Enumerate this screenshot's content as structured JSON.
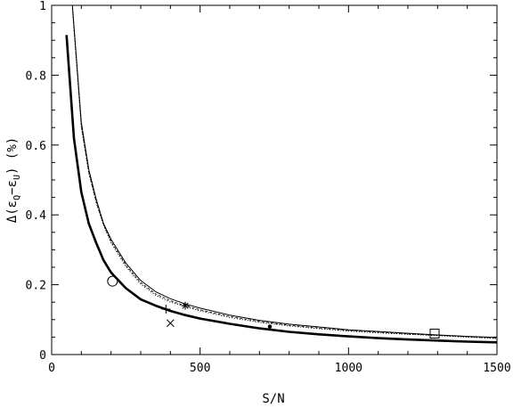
{
  "chart_data": {
    "type": "line",
    "title": "",
    "xlabel": "S/N",
    "ylabel": {
      "lead": "Δ(ε",
      "sub1": "Q",
      "mid": "−ε",
      "sub2": "U",
      "tail": ") (%)"
    },
    "xlim": [
      0,
      1500
    ],
    "ylim": [
      0,
      1
    ],
    "x_ticks": [
      0,
      500,
      1000,
      1500
    ],
    "y_ticks": [
      0,
      0.2,
      0.4,
      0.6,
      0.8,
      1
    ],
    "x_tick_labels": [
      "0",
      "500",
      "1000",
      "1500"
    ],
    "y_tick_labels": [
      "0",
      "0.2",
      "0.4",
      "0.6",
      "0.8",
      "1"
    ],
    "grid": false,
    "series": [
      {
        "style": "thick-solid",
        "x": [
          50,
          75,
          100,
          125,
          150,
          175,
          200,
          250,
          300,
          350,
          400,
          450,
          500,
          600,
          700,
          800,
          900,
          1000,
          1100,
          1200,
          1300,
          1400,
          1500
        ],
        "y": [
          0.915,
          0.62,
          0.465,
          0.375,
          0.32,
          0.27,
          0.235,
          0.19,
          0.158,
          0.14,
          0.125,
          0.113,
          0.103,
          0.088,
          0.075,
          0.065,
          0.058,
          0.052,
          0.047,
          0.043,
          0.04,
          0.037,
          0.035
        ]
      },
      {
        "style": "thin-solid",
        "x": [
          70,
          100,
          125,
          150,
          175,
          200,
          250,
          300,
          350,
          400,
          450,
          500,
          600,
          700,
          800,
          900,
          1000,
          1100,
          1200,
          1300,
          1400,
          1500
        ],
        "y": [
          1.0,
          0.665,
          0.53,
          0.445,
          0.375,
          0.33,
          0.262,
          0.212,
          0.18,
          0.16,
          0.145,
          0.133,
          0.113,
          0.098,
          0.087,
          0.079,
          0.071,
          0.066,
          0.061,
          0.056,
          0.052,
          0.049
        ]
      },
      {
        "style": "dotted",
        "x": [
          70,
          100,
          125,
          150,
          175,
          200,
          250,
          300,
          350,
          400,
          450,
          500,
          600,
          700,
          800,
          900,
          1000,
          1100,
          1200,
          1300,
          1400,
          1500
        ],
        "y": [
          0.99,
          0.65,
          0.52,
          0.435,
          0.37,
          0.32,
          0.252,
          0.202,
          0.17,
          0.15,
          0.137,
          0.125,
          0.106,
          0.092,
          0.082,
          0.074,
          0.067,
          0.062,
          0.058,
          0.054,
          0.05,
          0.046
        ]
      },
      {
        "style": "dashed",
        "x": [
          70,
          100,
          125,
          150,
          175,
          200,
          250,
          300,
          350,
          400,
          450,
          500,
          600,
          700,
          800,
          900,
          1000,
          1100,
          1200,
          1300,
          1400,
          1500
        ],
        "y": [
          0.995,
          0.655,
          0.522,
          0.438,
          0.372,
          0.324,
          0.256,
          0.206,
          0.174,
          0.154,
          0.14,
          0.128,
          0.109,
          0.095,
          0.084,
          0.076,
          0.069,
          0.064,
          0.059,
          0.055,
          0.051,
          0.047
        ]
      }
    ],
    "points": [
      {
        "marker": "circle",
        "x": 205,
        "y": 0.21
      },
      {
        "marker": "plus",
        "x": 385,
        "y": 0.13
      },
      {
        "marker": "cross",
        "x": 400,
        "y": 0.09
      },
      {
        "marker": "asterisk",
        "x": 450,
        "y": 0.14
      },
      {
        "marker": "dot",
        "x": 735,
        "y": 0.08
      },
      {
        "marker": "square",
        "x": 1290,
        "y": 0.06
      }
    ]
  }
}
